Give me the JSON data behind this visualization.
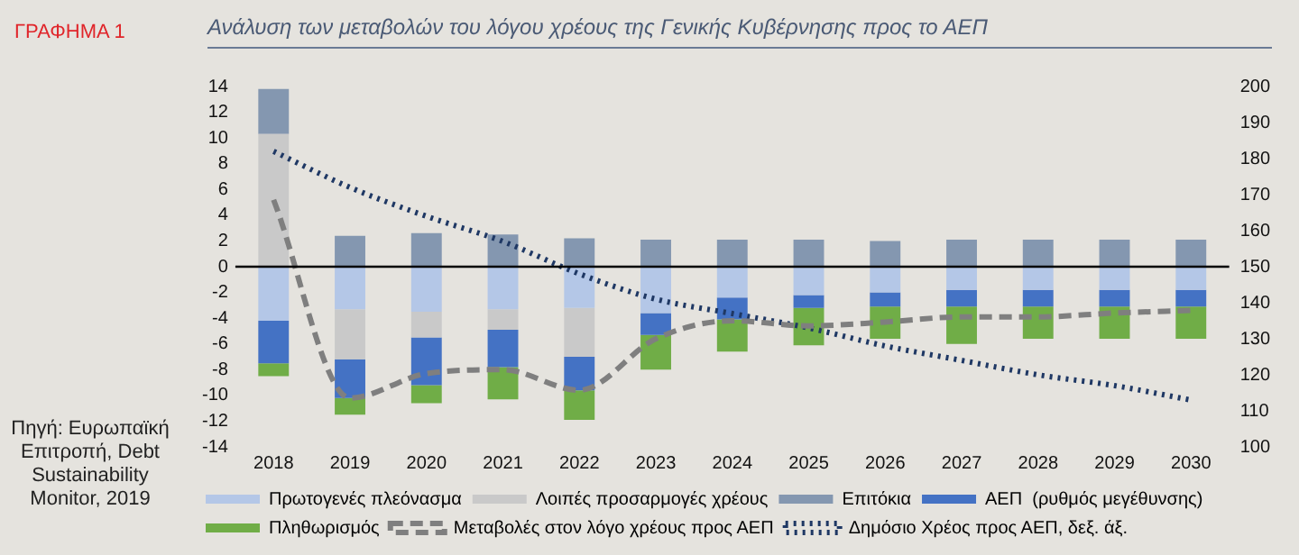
{
  "chart_data": {
    "type": "bar",
    "title": "Ανάλυση των μεταβολών του λόγου χρέους της Γενικής Κυβέρνησης προς το ΑΕΠ",
    "annotations": [
      "ΓΡΑΦΗΜΑ 1",
      "Πηγή: Ευρωπαϊκή Επιτροπή, Debt Sustainability Monitor, 2019"
    ],
    "categories": [
      "2018",
      "2019",
      "2020",
      "2021",
      "2022",
      "2023",
      "2024",
      "2025",
      "2026",
      "2027",
      "2028",
      "2029",
      "2030"
    ],
    "stacked": true,
    "grid": false,
    "legend": "bottom",
    "ylim": [
      -14,
      14
    ],
    "yticks": [
      -14,
      -12,
      -10,
      -8,
      -6,
      -4,
      -2,
      0,
      2,
      4,
      6,
      8,
      10,
      12,
      14
    ],
    "y2lim": [
      100,
      200
    ],
    "y2ticks": [
      100,
      110,
      120,
      130,
      140,
      150,
      160,
      170,
      180,
      190,
      200
    ],
    "ref_lines": [
      {
        "axis": "y",
        "value": 0,
        "color": "#000000"
      }
    ],
    "series": [
      {
        "name": "Πρωτογενές πλεόνασμα",
        "color": "#b4c7e7",
        "values": [
          -4.2,
          -3.3,
          -3.5,
          -3.3,
          -3.2,
          -3.6,
          -2.4,
          -2.2,
          -2.0,
          -1.8,
          -1.8,
          -1.8,
          -1.8
        ]
      },
      {
        "name": "Λοιπές προσαρμογές χρέους",
        "color": "#c9c9c9",
        "values": [
          10.3,
          -3.9,
          -2.0,
          -1.6,
          -3.8,
          null,
          null,
          null,
          null,
          null,
          null,
          null,
          null
        ]
      },
      {
        "name": "Επιτόκια",
        "color": "#8497b0",
        "values": [
          3.5,
          2.4,
          2.6,
          2.5,
          2.2,
          2.1,
          2.1,
          2.1,
          2.0,
          2.1,
          2.1,
          2.1,
          2.1
        ]
      },
      {
        "name": "ΑΕΠ  (ρυθμός μεγέθυνσης)",
        "color": "#4472c4",
        "values": [
          -3.3,
          -3.0,
          -3.7,
          -2.9,
          -2.6,
          -1.7,
          -1.7,
          -1.0,
          -1.1,
          -1.3,
          -1.3,
          -1.3,
          -1.3
        ]
      },
      {
        "name": "Πληθωρισμός",
        "color": "#70ad47",
        "values": [
          -1.0,
          -1.3,
          -1.4,
          -2.5,
          -2.3,
          -2.7,
          -2.5,
          -2.9,
          -2.5,
          -2.9,
          -2.5,
          -2.5,
          -2.5
        ]
      },
      {
        "name": "Μεταβολές στον λόγο χρέους προς ΑΕΠ",
        "type": "line",
        "line_style": "dashed",
        "marker": "none",
        "color": "#7f7f7f",
        "values": [
          5.2,
          -10.2,
          -8.3,
          -8.0,
          -9.6,
          -5.6,
          -4.2,
          -4.6,
          -4.3,
          -3.9,
          -3.9,
          -3.6,
          -3.4
        ]
      },
      {
        "name": "Δημόσιο Χρέος προς ΑΕΠ, δεξ. άξ.",
        "type": "line",
        "axis": "y2",
        "line_style": "dotted",
        "marker": "none",
        "color": "#1f3864",
        "values": [
          182,
          172,
          164,
          157,
          148,
          141,
          137,
          133,
          128,
          124,
          120,
          117,
          113
        ]
      }
    ]
  }
}
